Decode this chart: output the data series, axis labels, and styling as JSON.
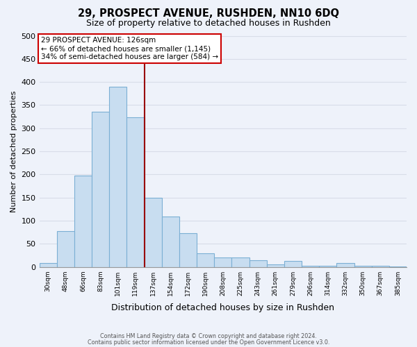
{
  "title": "29, PROSPECT AVENUE, RUSHDEN, NN10 6DQ",
  "subtitle": "Size of property relative to detached houses in Rushden",
  "xlabel": "Distribution of detached houses by size in Rushden",
  "ylabel": "Number of detached properties",
  "bar_labels": [
    "30sqm",
    "48sqm",
    "66sqm",
    "83sqm",
    "101sqm",
    "119sqm",
    "137sqm",
    "154sqm",
    "172sqm",
    "190sqm",
    "208sqm",
    "225sqm",
    "243sqm",
    "261sqm",
    "279sqm",
    "296sqm",
    "314sqm",
    "332sqm",
    "350sqm",
    "367sqm",
    "385sqm"
  ],
  "bar_values": [
    8,
    78,
    198,
    335,
    390,
    323,
    150,
    109,
    73,
    30,
    20,
    20,
    15,
    5,
    13,
    2,
    2,
    8,
    2,
    2,
    1
  ],
  "bar_color": "#c8ddf0",
  "bar_edge_color": "#7bafd4",
  "vline_x_idx": 5,
  "vline_color": "#990000",
  "annotation_title": "29 PROSPECT AVENUE: 126sqm",
  "annotation_line1": "← 66% of detached houses are smaller (1,145)",
  "annotation_line2": "34% of semi-detached houses are larger (584) →",
  "annotation_box_color": "#ffffff",
  "annotation_box_edge_color": "#cc0000",
  "ylim": [
    0,
    500
  ],
  "yticks": [
    0,
    50,
    100,
    150,
    200,
    250,
    300,
    350,
    400,
    450,
    500
  ],
  "footer1": "Contains HM Land Registry data © Crown copyright and database right 2024.",
  "footer2": "Contains public sector information licensed under the Open Government Licence v3.0.",
  "background_color": "#eef2fa",
  "grid_color": "#d8dde8",
  "n_bars": 21
}
